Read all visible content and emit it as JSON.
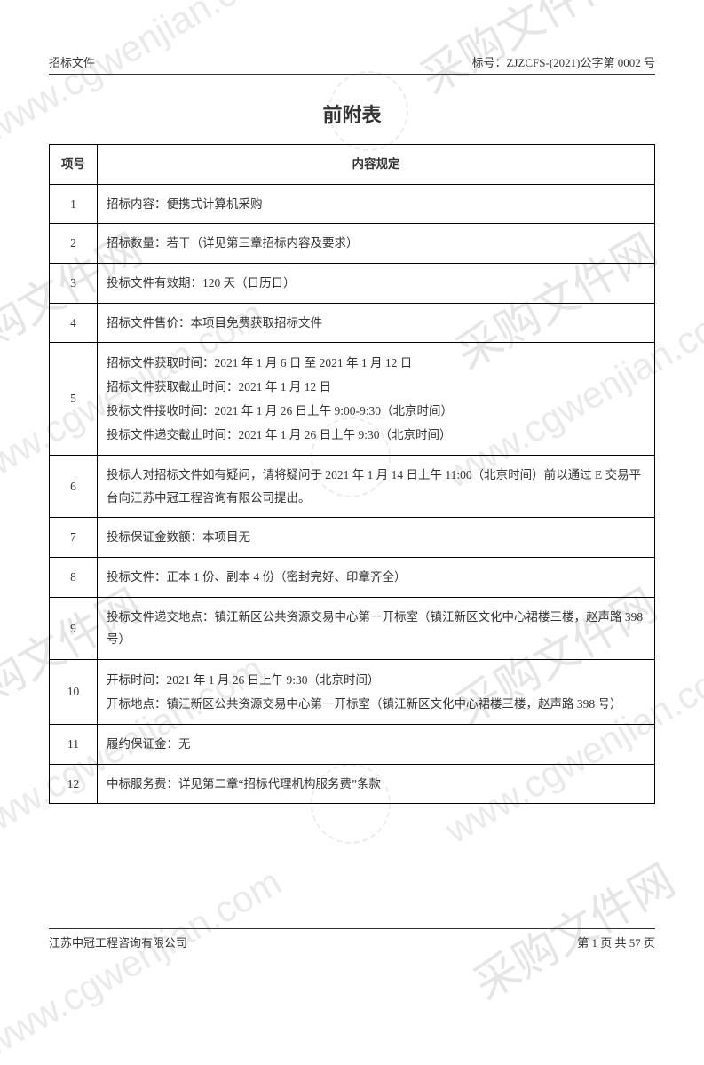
{
  "header": {
    "left": "招标文件",
    "right": "标号：ZJZCFS-(2021)公字第 0002 号"
  },
  "title": "前附表",
  "table": {
    "headers": {
      "col1": "项号",
      "col2": "内容规定"
    },
    "rows": [
      {
        "num": "1",
        "content": "招标内容：便携式计算机采购"
      },
      {
        "num": "2",
        "content": "招标数量：若干（详见第三章招标内容及要求）"
      },
      {
        "num": "3",
        "content": "投标文件有效期：120 天（日历日）"
      },
      {
        "num": "4",
        "content": "招标文件售价：本项目免费获取招标文件"
      },
      {
        "num": "5",
        "content": "招标文件获取时间：2021 年 1 月 6 日 至 2021 年 1 月 12 日\n招标文件获取截止时间：2021 年 1 月 12 日\n投标文件接收时间：2021 年 1 月 26 日上午 9:00-9:30（北京时间）\n投标文件递交截止时间：2021 年 1 月 26 日上午 9:30（北京时间）"
      },
      {
        "num": "6",
        "content": "投标人对招标文件如有疑问，请将疑问于 2021 年 1 月 14 日上午 11:00（北京时间）前以通过 E 交易平台向江苏中冠工程咨询有限公司提出。"
      },
      {
        "num": "7",
        "content": "投标保证金数额：本项目无"
      },
      {
        "num": "8",
        "content": "投标文件：正本 1 份、副本 4 份（密封完好、印章齐全）"
      },
      {
        "num": "9",
        "content": "投标文件递交地点：镇江新区公共资源交易中心第一开标室（镇江新区文化中心裙楼三楼，赵声路 398 号）"
      },
      {
        "num": "10",
        "content": "开标时间：2021 年 1 月 26 日上午 9:30（北京时间）\n开标地点：镇江新区公共资源交易中心第一开标室（镇江新区文化中心裙楼三楼，赵声路 398 号）"
      },
      {
        "num": "11",
        "content": "履约保证金：无"
      },
      {
        "num": "12",
        "content": "中标服务费：详见第二章“招标代理机构服务费”条款"
      }
    ]
  },
  "footer": {
    "left": "江苏中冠工程咨询有限公司",
    "right": "第 1 页 共 57 页"
  },
  "watermarks": {
    "url": "www.cgwenjian.com",
    "cn": "采购文件网"
  }
}
